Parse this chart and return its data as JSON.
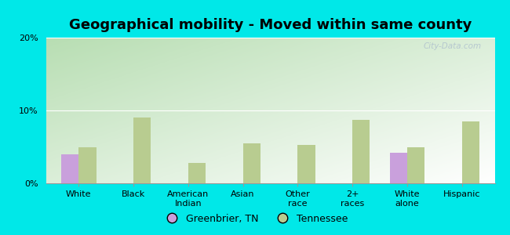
{
  "title": "Geographical mobility - Moved within same county",
  "categories": [
    "White",
    "Black",
    "American\nIndian",
    "Asian",
    "Other\nrace",
    "2+\nraces",
    "White\nalone",
    "Hispanic"
  ],
  "greenbrier_values": [
    4.0,
    null,
    null,
    null,
    null,
    null,
    4.2,
    null
  ],
  "tennessee_values": [
    5.0,
    9.0,
    2.8,
    5.5,
    5.3,
    8.7,
    5.0,
    8.5
  ],
  "greenbrier_color": "#c9a0dc",
  "tennessee_color": "#b8cc90",
  "bar_width": 0.32,
  "ylim": [
    0,
    20
  ],
  "yticks": [
    0,
    10,
    20
  ],
  "ytick_labels": [
    "0%",
    "10%",
    "20%"
  ],
  "background_color": "#00e8e8",
  "grad_top_left": "#b8ddb0",
  "grad_bottom_right": "#f5fff5",
  "legend_labels": [
    "Greenbrier, TN",
    "Tennessee"
  ],
  "watermark": "City-Data.com",
  "title_fontsize": 13,
  "tick_fontsize": 8
}
